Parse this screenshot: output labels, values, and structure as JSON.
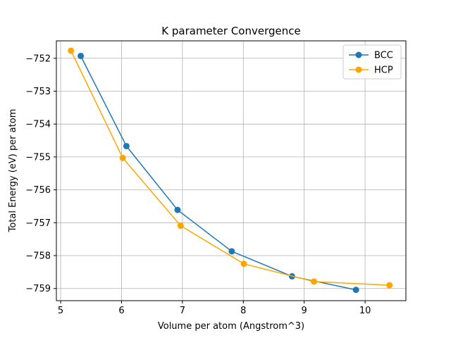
{
  "chart_data": {
    "type": "line",
    "title": "K parameter Convergence",
    "xlabel": "Volume per atom (Angstrom^3)",
    "ylabel": "Total Energy (eV) per atom",
    "xlim": [
      4.93,
      10.67
    ],
    "ylim": [
      -759.37,
      -751.47
    ],
    "xticks": [
      5,
      6,
      7,
      8,
      9,
      10
    ],
    "xtick_labels": [
      "5",
      "6",
      "7",
      "8",
      "9",
      "10"
    ],
    "yticks": [
      -752,
      -753,
      -754,
      -755,
      -756,
      -757,
      -758,
      -759
    ],
    "ytick_labels": [
      "−752",
      "−753",
      "−754",
      "−755",
      "−756",
      "−757",
      "−758",
      "−759"
    ],
    "grid": true,
    "legend_position": "top-right",
    "series": [
      {
        "name": "BCC",
        "color": "#1f77b4",
        "x": [
          5.33,
          6.08,
          6.92,
          7.81,
          8.8,
          9.85
        ],
        "y": [
          -751.93,
          -754.67,
          -756.61,
          -757.87,
          -758.63,
          -759.04
        ]
      },
      {
        "name": "HCP",
        "color": "#ffa500",
        "x": [
          5.17,
          6.02,
          6.97,
          8.01,
          9.16,
          10.4
        ],
        "y": [
          -751.77,
          -755.03,
          -757.09,
          -758.25,
          -758.79,
          -758.9
        ]
      }
    ]
  }
}
